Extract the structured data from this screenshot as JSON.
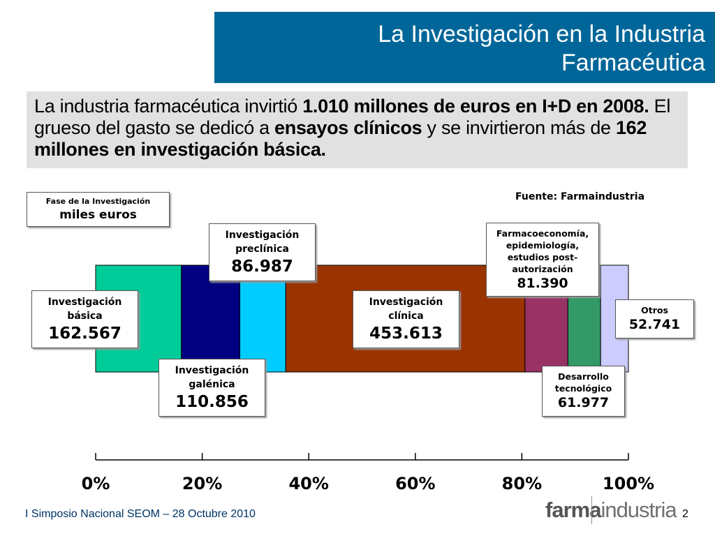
{
  "header": {
    "title_line1": "La Investigación en la Industria",
    "title_line2": "Farmacéutica"
  },
  "intro": {
    "t1": "La industria farmacéutica invirtió ",
    "b1": "1.010 millones de euros en I+D en 2008.",
    "t2": " El grueso del gasto se dedicó a ",
    "b2": "ensayos clínicos",
    "t3": " y se invirtieron más de ",
    "b3": "162 millones en investigación básica."
  },
  "legend": {
    "title": "Fase de la Investigación",
    "unit": "miles euros"
  },
  "source": "Fuente: Farmaindustria",
  "footer": {
    "event": "I Simposio Nacional SEOM – 28 Octubre 2010",
    "page": "2",
    "logo_bold": "farma",
    "logo_rest": "industria"
  },
  "colors": {
    "title_bar": "#006699",
    "intro_bg": "#e1e1e1"
  },
  "chart_data": {
    "type": "bar",
    "orientation": "horizontal-stacked-100",
    "categories": [
      "Investigación básica",
      "Investigación galénica",
      "Investigación preclínica",
      "Investigación clínica",
      "Farmacoeconomía, epidemiología, estudios post-autorización",
      "Desarrollo tecnológico",
      "Otros"
    ],
    "label_lines": [
      [
        "Investigación",
        "básica"
      ],
      [
        "Investigación",
        "galénica"
      ],
      [
        "Investigación",
        "preclínica"
      ],
      [
        "Investigación",
        "clínica"
      ],
      [
        "Farmacoeconomía,",
        "epidemiología,",
        "estudios post-",
        "autorización"
      ],
      [
        "Desarrollo",
        "tecnológico"
      ],
      [
        "Otros"
      ]
    ],
    "values": [
      162567,
      110856,
      86987,
      453613,
      81390,
      61977,
      52741
    ],
    "value_labels": [
      "162.567",
      "110.856",
      "86.987",
      "453.613",
      "81.390",
      "61.977",
      "52.741"
    ],
    "colors": [
      "#00cc99",
      "#000080",
      "#00ccff",
      "#993300",
      "#993366",
      "#339966",
      "#ccccff"
    ],
    "x_ticks": [
      "0%",
      "20%",
      "40%",
      "60%",
      "80%",
      "100%"
    ],
    "xlim": [
      0,
      100
    ]
  }
}
